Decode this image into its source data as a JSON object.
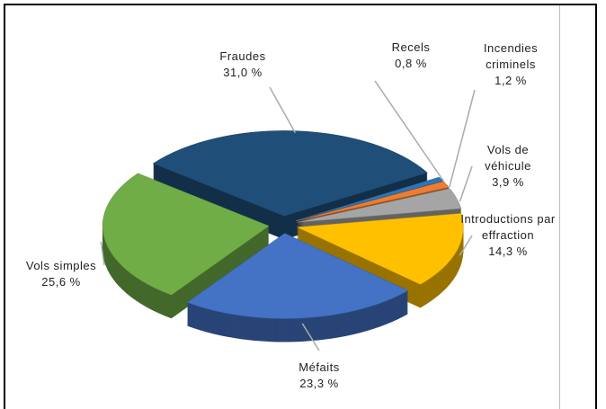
{
  "chart_data": {
    "type": "pie",
    "categories": [
      "Fraudes",
      "Recels",
      "Incendies criminels",
      "Vols de véhicule",
      "Introductions par effraction",
      "Méfaits",
      "Vols simples"
    ],
    "values": [
      31.0,
      0.8,
      1.2,
      3.9,
      14.3,
      23.3,
      25.6
    ],
    "value_labels": [
      "31,0 %",
      "0,8 %",
      "1,2 %",
      "3,9 %",
      "14,3 %",
      "23,3 %",
      "25,6 %"
    ],
    "colors": [
      "#1f4e79",
      "#2e75b6",
      "#ed7d31",
      "#a5a5a5",
      "#ffc000",
      "#4472c4",
      "#70ad47"
    ]
  }
}
